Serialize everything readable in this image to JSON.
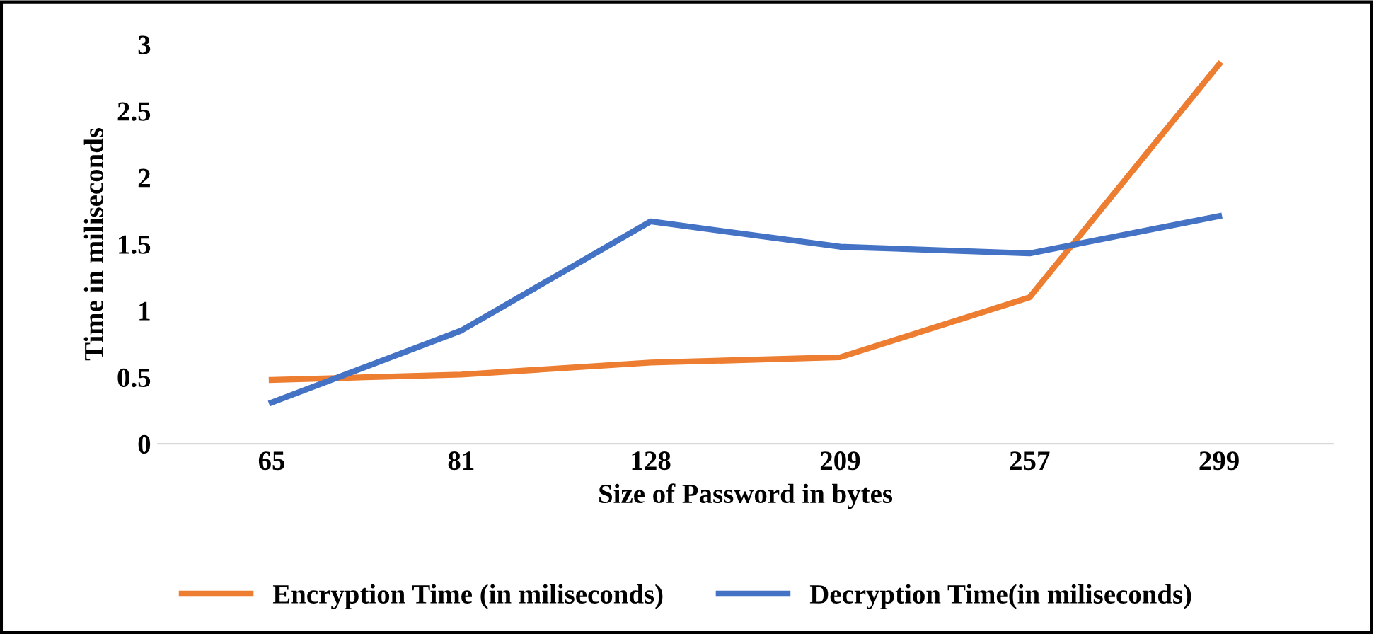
{
  "chart_data": {
    "type": "line",
    "xlabel": "Size of Password in bytes",
    "ylabel": "Time in miliseconds",
    "categories": [
      "65",
      "81",
      "128",
      "209",
      "257",
      "299"
    ],
    "series": [
      {
        "name": "Encryption Time (in miliseconds)",
        "color": "#ed7d31",
        "values": [
          0.48,
          0.52,
          0.61,
          0.65,
          1.1,
          2.85
        ]
      },
      {
        "name": "Decryption Time(in miliseconds)",
        "color": "#4472c4",
        "values": [
          0.31,
          0.85,
          1.67,
          1.48,
          1.43,
          1.71
        ]
      }
    ],
    "ylim": [
      0,
      3
    ],
    "yticks": [
      0,
      0.5,
      1,
      1.5,
      2,
      2.5,
      3
    ],
    "grid": false,
    "legend": "bottom",
    "marker": "none",
    "line_style": "solid"
  }
}
